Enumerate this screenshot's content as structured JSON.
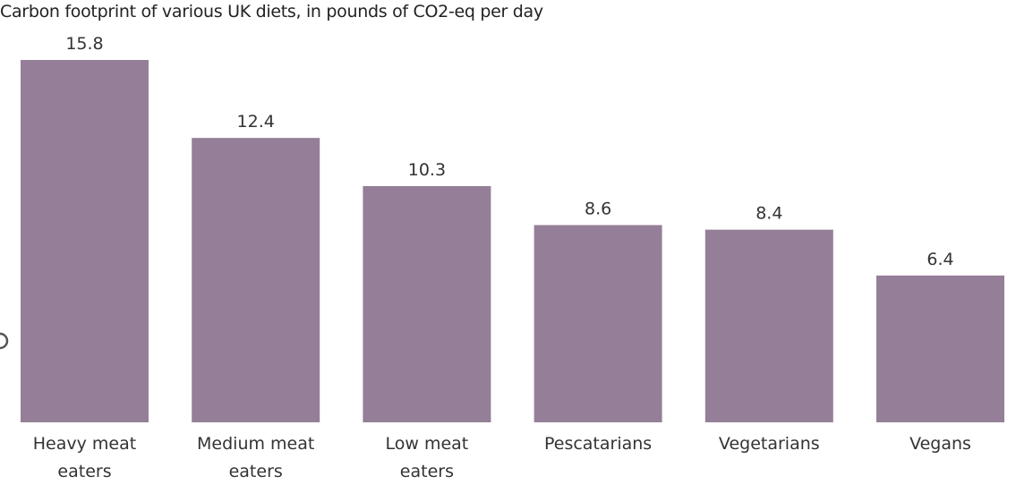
{
  "chart_data": {
    "type": "bar",
    "title": "Carbon footprint of various UK diets, in pounds of CO2-eq per day",
    "xlabel": "",
    "ylabel": "",
    "ylim": [
      0,
      15.8
    ],
    "grid": false,
    "legend": "none",
    "categories": [
      [
        "Heavy meat",
        "eaters"
      ],
      [
        "Medium meat",
        "eaters"
      ],
      [
        "Low meat",
        "eaters"
      ],
      [
        "Pescatarians"
      ],
      [
        "Vegetarians"
      ],
      [
        "Vegans"
      ]
    ],
    "values": [
      15.8,
      12.4,
      10.3,
      8.6,
      8.4,
      6.4
    ],
    "value_labels": [
      "15.8",
      "12.4",
      "10.3",
      "8.6",
      "8.4",
      "6.4"
    ],
    "bar_color": "#957f98"
  }
}
